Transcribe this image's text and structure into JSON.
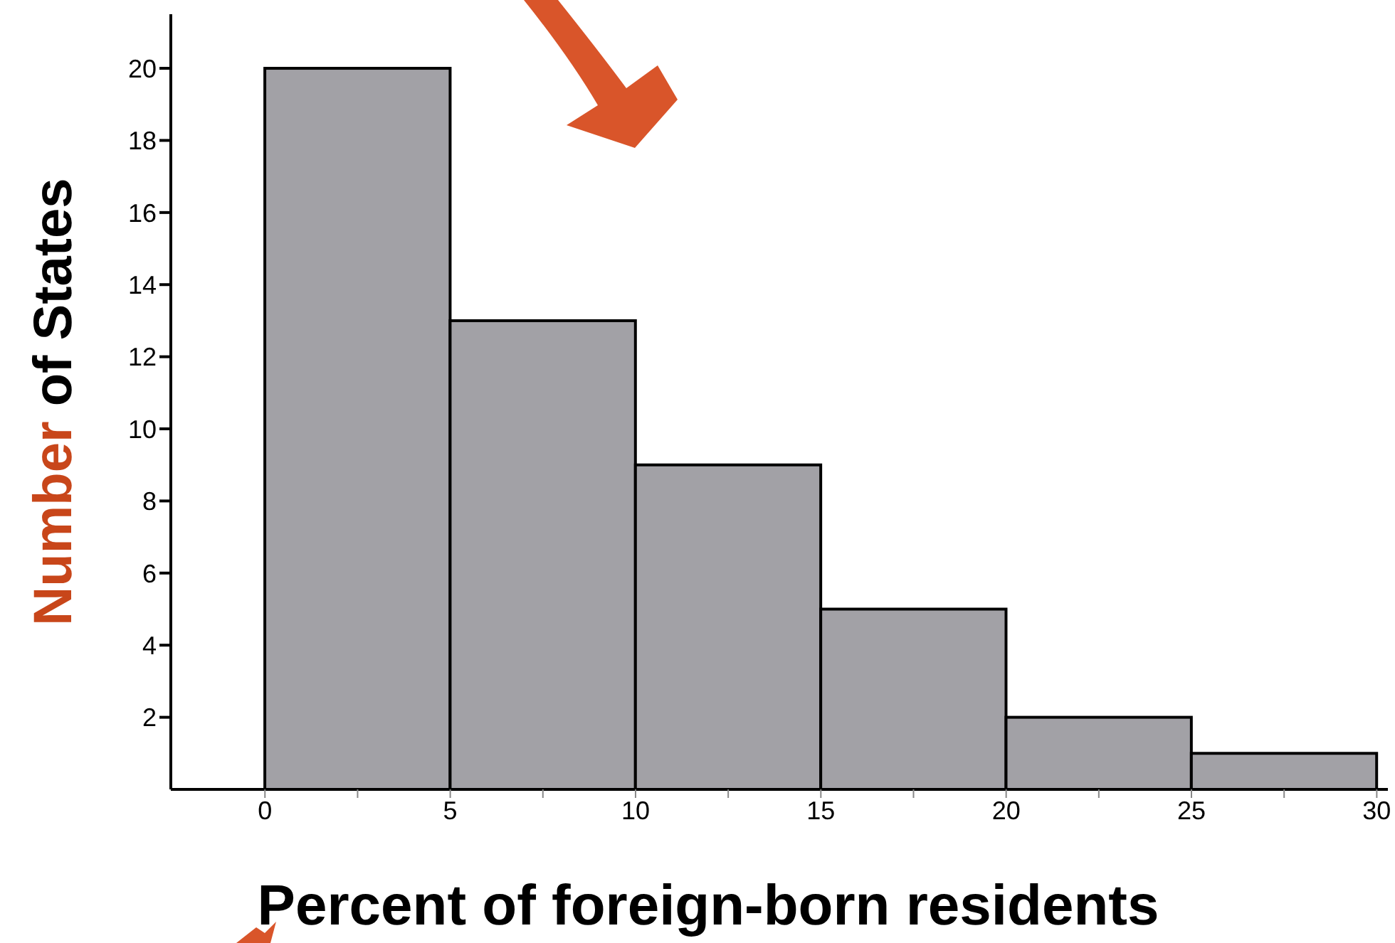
{
  "chart_data": {
    "type": "histogram",
    "xlabel": "Percent of foreign-born residents",
    "ylabel": "Number of States",
    "bins": [
      0,
      5,
      10,
      15,
      20,
      25,
      30
    ],
    "values": [
      20,
      13,
      9,
      5,
      2,
      1
    ],
    "color": "#a2a1a6",
    "xlim": [
      -2.54,
      30.3
    ],
    "xticks": [
      0,
      {
        "value": 2.5,
        "label": null
      },
      5,
      {
        "value": 7.5,
        "label": null
      },
      10,
      {
        "value": 12.5,
        "label": null
      },
      15,
      {
        "value": 17.5,
        "label": null
      },
      20,
      {
        "value": 22.5,
        "label": null
      },
      25,
      {
        "value": 27.5,
        "label": null
      },
      30
    ],
    "ylim": [
      0,
      21.5
    ],
    "yticks": [
      2,
      4,
      6,
      8,
      10,
      12,
      14,
      16,
      18,
      20
    ],
    "grid": false,
    "legend": false
  }
}
